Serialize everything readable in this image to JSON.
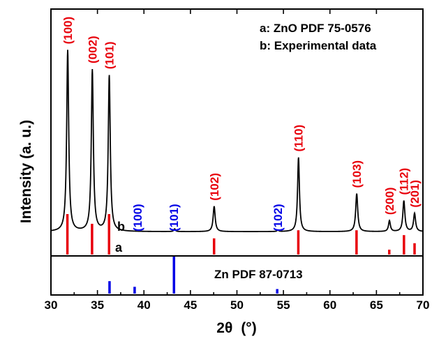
{
  "chart_data": {
    "type": "line",
    "xlabel_main": "2θ",
    "xlabel_unit": "(°)",
    "ylabel": "Intensity (a. u.)",
    "xlim": [
      30,
      70
    ],
    "xticks": [
      "30",
      "35",
      "40",
      "45",
      "50",
      "55",
      "60",
      "65",
      "70"
    ],
    "legend": [
      "a: ZnO PDF 75-0576",
      "b: Experimental data"
    ],
    "legend_position": "top-right",
    "bottom_panel_title": "Zn PDF 87-0713",
    "curve_labels": {
      "experimental": "b",
      "reference": "a"
    },
    "series": [
      {
        "name": "b",
        "kind": "xrd-pattern",
        "color": "#000000",
        "baseline": 3,
        "peaks": [
          {
            "x": 31.8,
            "y": 100,
            "w": 0.13
          },
          {
            "x": 34.45,
            "y": 89,
            "w": 0.13
          },
          {
            "x": 36.27,
            "y": 86,
            "w": 0.13
          },
          {
            "x": 43.3,
            "y": 1.5,
            "w": 0.1
          },
          {
            "x": 47.55,
            "y": 14,
            "w": 0.13
          },
          {
            "x": 54.4,
            "y": 0.8,
            "w": 0.1
          },
          {
            "x": 56.62,
            "y": 41,
            "w": 0.12
          },
          {
            "x": 62.88,
            "y": 21,
            "w": 0.13
          },
          {
            "x": 66.4,
            "y": 6,
            "w": 0.12
          },
          {
            "x": 67.95,
            "y": 17,
            "w": 0.13
          },
          {
            "x": 69.1,
            "y": 10,
            "w": 0.13
          }
        ]
      },
      {
        "name": "a",
        "kind": "reference-sticks",
        "color": "#e8000b",
        "sticks": [
          {
            "x": 31.77,
            "h": 100
          },
          {
            "x": 34.42,
            "h": 76
          },
          {
            "x": 36.25,
            "h": 100
          },
          {
            "x": 47.54,
            "h": 40
          },
          {
            "x": 56.6,
            "h": 60
          },
          {
            "x": 62.86,
            "h": 60
          },
          {
            "x": 66.38,
            "h": 12
          },
          {
            "x": 67.96,
            "h": 48
          },
          {
            "x": 69.1,
            "h": 28
          }
        ]
      },
      {
        "name": "Zn PDF 87-0713",
        "kind": "reference-sticks",
        "color": "#0000e6",
        "sticks": [
          {
            "x": 36.3,
            "h": 33
          },
          {
            "x": 39.0,
            "h": 18
          },
          {
            "x": 43.23,
            "h": 100
          },
          {
            "x": 54.33,
            "h": 12
          }
        ]
      }
    ],
    "annotations": [
      {
        "text": "(100)",
        "x": 31.8,
        "color": "red"
      },
      {
        "text": "(002)",
        "x": 34.45,
        "color": "red"
      },
      {
        "text": "(101)",
        "x": 36.27,
        "color": "red"
      },
      {
        "text": "(100)",
        "x": 39.3,
        "color": "blue"
      },
      {
        "text": "(101)",
        "x": 43.2,
        "color": "blue"
      },
      {
        "text": "(102)",
        "x": 47.55,
        "color": "red"
      },
      {
        "text": "(102)",
        "x": 54.4,
        "color": "blue"
      },
      {
        "text": "(110)",
        "x": 56.62,
        "color": "red"
      },
      {
        "text": "(103)",
        "x": 62.88,
        "color": "red"
      },
      {
        "text": "(200)",
        "x": 66.4,
        "color": "red"
      },
      {
        "text": "(112)",
        "x": 67.95,
        "color": "red"
      },
      {
        "text": "(201)",
        "x": 69.1,
        "color": "red"
      }
    ]
  }
}
